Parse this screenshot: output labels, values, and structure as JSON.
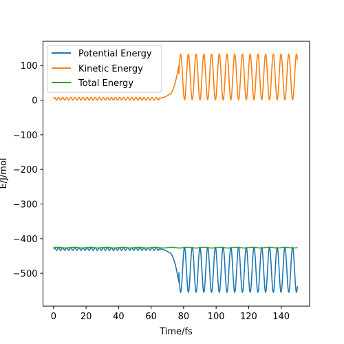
{
  "chart_data": {
    "type": "line",
    "title": "",
    "xlabel": "Time/fs",
    "ylabel": "E/J/mol",
    "xlim": [
      -6.5,
      157.5
    ],
    "ylim": [
      -595,
      170
    ],
    "xticks": [
      0,
      20,
      40,
      60,
      80,
      100,
      120,
      140
    ],
    "yticks": [
      -500,
      -400,
      -300,
      -200,
      -100,
      0,
      100
    ],
    "grid": false,
    "legend_position": "upper-left",
    "t_end": 150,
    "series": [
      {
        "name": "Potential Energy",
        "color": "#1f77b4",
        "phases": [
          {
            "t0": 0,
            "t1": 65,
            "base": -430,
            "amp": 4,
            "period": 2.5
          },
          {
            "t0": 65,
            "t1": 71,
            "base": -430,
            "end": -440
          },
          {
            "t0": 71,
            "t1": 77,
            "base": -440,
            "end": -525
          },
          {
            "t0": 77,
            "t1": 150,
            "base": -490,
            "amp": 65,
            "period": 4.75,
            "sign": -1
          }
        ]
      },
      {
        "name": "Kinetic Energy",
        "color": "#ff7f0e",
        "phases": [
          {
            "t0": 0,
            "t1": 65,
            "base": 4,
            "amp": 4,
            "period": 2.5
          },
          {
            "t0": 65,
            "t1": 71,
            "base": 6,
            "end": 16
          },
          {
            "t0": 71,
            "t1": 77,
            "base": 16,
            "end": 100
          },
          {
            "t0": 77,
            "t1": 150,
            "base": 67,
            "amp": 66,
            "period": 4.75,
            "sign": 1
          }
        ]
      },
      {
        "name": "Total Energy",
        "color": "#2ca02c",
        "phases": [
          {
            "t0": 0,
            "t1": 150,
            "base": -426,
            "amp": 1,
            "period": 10
          }
        ]
      }
    ]
  }
}
